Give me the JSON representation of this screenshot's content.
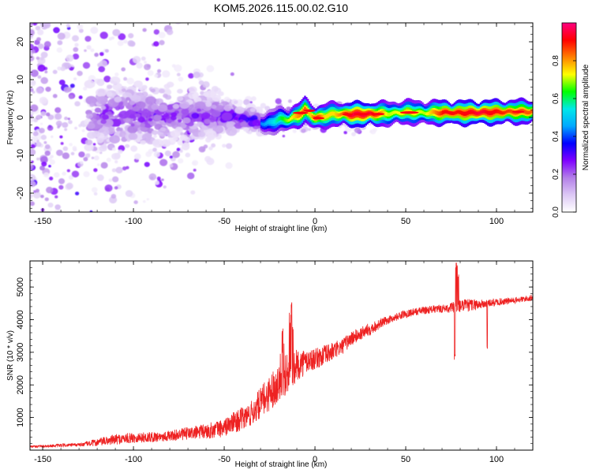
{
  "chart_data": [
    {
      "type": "heatmap",
      "title": "KOM5.2026.115.00.02.G10",
      "xlabel": "Height of straight line (km)",
      "ylabel": "Frequency (Hz)",
      "xlim": [
        -157,
        120
      ],
      "ylim": [
        -25,
        25
      ],
      "xticks": [
        -150,
        -100,
        -50,
        0,
        50,
        100
      ],
      "xtick_labels": [
        "-150",
        "-100",
        "-50",
        "0",
        "50",
        "100"
      ],
      "yticks": [
        -20,
        -10,
        0,
        10,
        20
      ],
      "ytick_labels": [
        "-20",
        "-10",
        "0",
        "10",
        "20"
      ],
      "colorbar": {
        "label": "Normalized spectral amplitude",
        "range": [
          0,
          1
        ],
        "ticks": [
          0.0,
          0.2,
          0.4,
          0.6,
          0.8
        ],
        "tick_labels": [
          "0.0",
          "0.2",
          "0.4",
          "0.6",
          "0.8"
        ],
        "colors": [
          "#ffffff",
          "#dcc8f5",
          "#b37fe8",
          "#7f00ff",
          "#0000ff",
          "#00a8ff",
          "#00e8e8",
          "#00ff00",
          "#ffff00",
          "#ff8000",
          "#ff0000",
          "#ff0080"
        ]
      },
      "ridge": {
        "x": [
          -125,
          -110,
          -90,
          -70,
          -50,
          -35,
          -28,
          -20,
          -15,
          -10,
          -6,
          -3,
          0,
          5,
          10,
          20,
          30,
          40,
          50,
          60,
          70,
          80,
          90,
          100,
          110,
          120
        ],
        "center_hz": [
          0.5,
          0.6,
          0.8,
          0.4,
          0.2,
          -0.5,
          -1.8,
          -0.4,
          -0.6,
          0.4,
          2.0,
          0.8,
          -0.2,
          0.4,
          0.9,
          0.8,
          0.9,
          1.0,
          1.4,
          1.2,
          1.3,
          1.2,
          1.3,
          1.4,
          1.5,
          1.5
        ],
        "amplitude": [
          0.25,
          0.3,
          0.3,
          0.3,
          0.35,
          0.4,
          0.45,
          0.6,
          0.7,
          0.8,
          0.85,
          0.75,
          0.9,
          0.75,
          0.75,
          0.95,
          0.95,
          0.7,
          0.75,
          0.7,
          0.9,
          0.9,
          0.95,
          0.9,
          0.85,
          0.85
        ]
      }
    },
    {
      "type": "line",
      "xlabel": "Height of straight line (km)",
      "ylabel": "SNR (10 * v/v)",
      "xlim": [
        -157,
        120
      ],
      "ylim": [
        0,
        5800
      ],
      "xticks": [
        -150,
        -100,
        -50,
        0,
        50,
        100
      ],
      "xtick_labels": [
        "-150",
        "-100",
        "-50",
        "0",
        "50",
        "100"
      ],
      "yticks": [
        1000,
        2000,
        3000,
        4000,
        5000
      ],
      "ytick_labels": [
        "1000",
        "2000",
        "3000",
        "4000",
        "5000"
      ],
      "color": "#ee2222",
      "series": [
        {
          "name": "SNR",
          "x": [
            -157,
            -150,
            -140,
            -130,
            -120,
            -110,
            -100,
            -90,
            -80,
            -70,
            -60,
            -50,
            -45,
            -40,
            -35,
            -30,
            -25,
            -20,
            -15,
            -12,
            -10,
            -5,
            0,
            5,
            10,
            15,
            20,
            25,
            30,
            35,
            40,
            45,
            50,
            55,
            60,
            65,
            70,
            75,
            80,
            85,
            90,
            95,
            100,
            105,
            110,
            115,
            120
          ],
          "y": [
            100,
            110,
            130,
            150,
            200,
            280,
            330,
            350,
            390,
            450,
            500,
            600,
            750,
            850,
            1000,
            1300,
            1600,
            1900,
            2200,
            2350,
            2450,
            2600,
            2700,
            2800,
            2950,
            3100,
            3350,
            3500,
            3650,
            3800,
            3950,
            4050,
            4150,
            4200,
            4250,
            4280,
            4300,
            4320,
            4350,
            4380,
            4420,
            4450,
            4500,
            4530,
            4560,
            4600,
            4650
          ],
          "noise": [
            40,
            50,
            60,
            60,
            150,
            200,
            200,
            200,
            200,
            250,
            300,
            350,
            400,
            450,
            500,
            600,
            700,
            700,
            800,
            700,
            600,
            500,
            400,
            400,
            350,
            300,
            300,
            250,
            250,
            200,
            150,
            150,
            150,
            150,
            150,
            150,
            150,
            200,
            250,
            250,
            200,
            150,
            150,
            130,
            120,
            120,
            120
          ]
        }
      ],
      "annotations": [
        {
          "x": -13,
          "y": 4550,
          "label": "spike"
        },
        {
          "x": -18,
          "y": 3850,
          "label": "spike"
        },
        {
          "x": 78,
          "y": 5800,
          "label": "spike"
        },
        {
          "x": 77,
          "y": 2950,
          "label": "dip"
        },
        {
          "x": 95,
          "y": 3350,
          "label": "dip"
        }
      ]
    }
  ]
}
